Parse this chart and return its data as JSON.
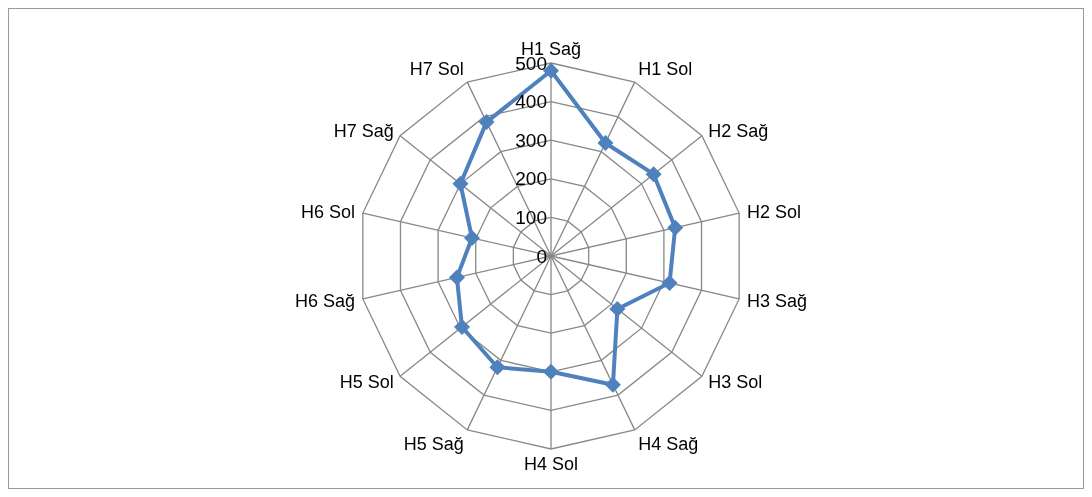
{
  "chart_data": {
    "type": "radar",
    "categories": [
      "H1 Sağ",
      "H1 Sol",
      "H2 Sağ",
      "H2 Sol",
      "H3 Sağ",
      "H3 Sol",
      "H4 Sağ",
      "H4 Sol",
      "H5 Sağ",
      "H5 Sol",
      "H6 Sağ",
      "H6 Sol",
      "H7 Sağ",
      "H7 Sol"
    ],
    "series": [
      {
        "color": "#4f81bd",
        "values": [
          480,
          325,
          340,
          330,
          315,
          220,
          370,
          300,
          320,
          295,
          250,
          210,
          300,
          385
        ]
      }
    ],
    "ylim": [
      0,
      500
    ],
    "yticks": [
      0,
      100,
      200,
      300,
      400,
      500
    ],
    "grid": true,
    "marker": "diamond",
    "legend": false
  }
}
